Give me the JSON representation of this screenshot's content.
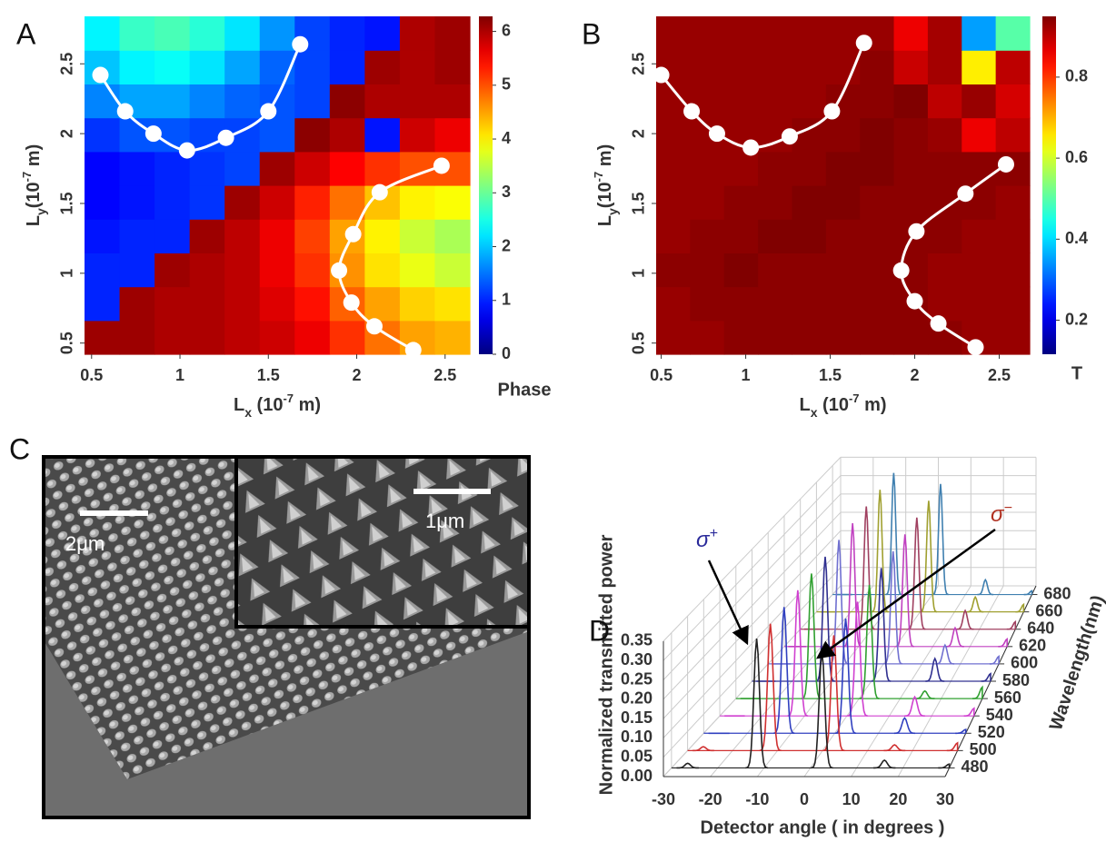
{
  "panel_labels": [
    "A",
    "B",
    "C",
    "D"
  ],
  "panel_c": {
    "scale_labels": [
      "2μm",
      "1μm"
    ]
  },
  "chart_data": [
    {
      "type": "heatmap",
      "xlabel": [
        "L",
        "x",
        " (10",
        "-7",
        " m)"
      ],
      "ylabel": [
        "L",
        "y",
        "(10",
        "-7",
        " m)"
      ],
      "xlim": [
        0.46,
        2.64
      ],
      "ylim": [
        0.42,
        2.84
      ],
      "xticks": [
        0.5,
        1,
        1.5,
        2,
        2.5
      ],
      "yticks": [
        0.5,
        1,
        1.5,
        2,
        2.5
      ],
      "colorbar_label": "Phase",
      "clim": [
        0,
        6.28
      ],
      "cticks": [
        0,
        1,
        2,
        3,
        4,
        5,
        6
      ],
      "z": [
        [
          6.1,
          6.1,
          6.0,
          6.0,
          5.9,
          5.8,
          5.6,
          5.2,
          4.8,
          4.5,
          4.4
        ],
        [
          1.0,
          6.1,
          6.0,
          6.0,
          5.9,
          5.7,
          5.4,
          4.9,
          4.5,
          4.2,
          4.1
        ],
        [
          1.0,
          1.0,
          6.1,
          6.0,
          5.9,
          5.6,
          5.2,
          4.6,
          4.1,
          3.8,
          3.6
        ],
        [
          0.9,
          1.0,
          1.0,
          6.1,
          5.9,
          5.6,
          5.1,
          4.5,
          4.0,
          3.6,
          3.4
        ],
        [
          0.8,
          0.9,
          1.0,
          1.1,
          6.1,
          5.8,
          5.3,
          4.8,
          4.3,
          4.0,
          3.9
        ],
        [
          0.8,
          0.9,
          1.0,
          1.1,
          1.2,
          6.1,
          5.8,
          5.5,
          5.2,
          5.0,
          5.0
        ],
        [
          1.1,
          1.3,
          1.3,
          1.2,
          1.2,
          1.3,
          6.2,
          6.0,
          0.9,
          5.8,
          5.6
        ],
        [
          1.6,
          1.8,
          1.8,
          1.6,
          1.4,
          1.3,
          1.2,
          6.2,
          6.0,
          6.0,
          6.0
        ],
        [
          2.0,
          2.3,
          2.4,
          2.2,
          1.8,
          1.4,
          1.2,
          1.0,
          6.1,
          6.0,
          6.1
        ],
        [
          2.3,
          2.7,
          2.8,
          2.6,
          2.2,
          1.7,
          1.2,
          1.0,
          0.9,
          6.0,
          6.1
        ]
      ],
      "series": [
        {
          "color": "#ffffff",
          "x": [
            0.55,
            0.69,
            0.85,
            1.04,
            1.26,
            1.5,
            1.68
          ],
          "values": [
            2.42,
            2.16,
            2.0,
            1.88,
            1.97,
            2.16,
            2.64
          ]
        },
        {
          "color": "#ffffff",
          "x": [
            2.48,
            2.13,
            1.98,
            1.9,
            1.97,
            2.1,
            2.32
          ],
          "values": [
            1.77,
            1.58,
            1.28,
            1.02,
            0.79,
            0.62,
            0.45
          ]
        }
      ]
    },
    {
      "type": "heatmap",
      "xlabel": [
        "L",
        "x",
        " (10",
        "-7",
        " m)"
      ],
      "ylabel": [
        "L",
        "y",
        "(10",
        "-7",
        " m)"
      ],
      "xlim": [
        0.47,
        2.68
      ],
      "ylim": [
        0.42,
        2.84
      ],
      "xticks": [
        0.5,
        1,
        1.5,
        2,
        2.5
      ],
      "yticks": [
        0.5,
        1,
        1.5,
        2,
        2.5
      ],
      "colorbar_label": "T",
      "clim": [
        0.116,
        0.95
      ],
      "cticks": [
        0.2,
        0.4,
        0.6,
        0.8
      ],
      "z": [
        [
          0.93,
          0.93,
          0.94,
          0.94,
          0.94,
          0.94,
          0.94,
          0.94,
          0.94,
          0.93,
          0.93
        ],
        [
          0.93,
          0.94,
          0.94,
          0.94,
          0.94,
          0.94,
          0.94,
          0.94,
          0.93,
          0.93,
          0.93
        ],
        [
          0.94,
          0.94,
          0.95,
          0.94,
          0.94,
          0.94,
          0.94,
          0.94,
          0.93,
          0.93,
          0.93
        ],
        [
          0.93,
          0.94,
          0.94,
          0.95,
          0.95,
          0.94,
          0.94,
          0.94,
          0.94,
          0.93,
          0.93
        ],
        [
          0.93,
          0.93,
          0.94,
          0.94,
          0.95,
          0.95,
          0.94,
          0.94,
          0.94,
          0.94,
          0.93
        ],
        [
          0.93,
          0.93,
          0.93,
          0.94,
          0.94,
          0.95,
          0.95,
          0.94,
          0.94,
          0.94,
          0.94
        ],
        [
          0.93,
          0.93,
          0.93,
          0.93,
          0.94,
          0.94,
          0.95,
          0.94,
          0.93,
          0.86,
          0.9
        ],
        [
          0.93,
          0.93,
          0.93,
          0.93,
          0.93,
          0.94,
          0.94,
          0.95,
          0.9,
          0.93,
          0.88
        ],
        [
          0.93,
          0.93,
          0.93,
          0.93,
          0.93,
          0.93,
          0.94,
          0.89,
          0.92,
          0.65,
          0.9
        ],
        [
          0.93,
          0.93,
          0.93,
          0.93,
          0.93,
          0.93,
          0.93,
          0.86,
          0.92,
          0.35,
          0.5
        ]
      ],
      "series": [
        {
          "color": "#ffffff",
          "x": [
            0.5,
            0.68,
            0.83,
            1.03,
            1.26,
            1.51,
            1.7
          ],
          "values": [
            2.42,
            2.16,
            2.0,
            1.9,
            1.98,
            2.16,
            2.65
          ]
        },
        {
          "color": "#ffffff",
          "x": [
            2.54,
            2.3,
            2.01,
            1.92,
            2.0,
            2.14,
            2.36
          ],
          "values": [
            1.78,
            1.57,
            1.3,
            1.02,
            0.8,
            0.64,
            0.47
          ]
        }
      ]
    },
    {
      "type": "waterfall3d",
      "xlabel": "Detector angle ( in degrees )",
      "ylabel": "Normalized transmitted power",
      "zlabel": "Wavelength(nm)",
      "xlim": [
        -30,
        30
      ],
      "xticks": [
        -30,
        -20,
        -10,
        0,
        10,
        20,
        30
      ],
      "ylim": [
        0,
        0.35
      ],
      "yticks": [
        {
          "value": 0,
          "label": "0.00"
        },
        {
          "value": 0.05,
          "label": "0.05"
        },
        {
          "value": 0.1,
          "label": "0.10"
        },
        {
          "value": 0.15,
          "label": "0.15"
        },
        {
          "value": 0.2,
          "label": "0.20"
        },
        {
          "value": 0.25,
          "label": "0.25"
        },
        {
          "value": 0.3,
          "label": "0.30"
        },
        {
          "value": 0.35,
          "label": "0.35"
        }
      ],
      "z": [
        480,
        500,
        520,
        540,
        560,
        580,
        600,
        620,
        640,
        660,
        680
      ],
      "peak_x": [
        -26.5,
        -11.6,
        2.5,
        16,
        30
      ],
      "annotations": [
        {
          "text": "σ",
          "sup": "+",
          "color": "#2a2a9a"
        },
        {
          "text": "σ",
          "sup": "−",
          "color": "#b03020"
        }
      ],
      "series": [
        {
          "color": "#222222",
          "values": [
            0.012,
            0.335,
            0.3,
            0.02,
            0.01
          ]
        },
        {
          "color": "#d03030",
          "values": [
            0.01,
            0.33,
            0.3,
            0.015,
            0.02
          ]
        },
        {
          "color": "#3040c0",
          "values": [
            0.0,
            0.33,
            0.3,
            0.04,
            0.01
          ]
        },
        {
          "color": "#d040d0",
          "values": [
            0.0,
            0.33,
            0.3,
            0.05,
            0.02
          ]
        },
        {
          "color": "#30a030",
          "values": [
            0.0,
            0.33,
            0.3,
            0.02,
            0.03
          ]
        },
        {
          "color": "#303090",
          "values": [
            0.0,
            0.33,
            0.3,
            0.06,
            0.02
          ]
        },
        {
          "color": "#7070d0",
          "values": [
            0.0,
            0.33,
            0.3,
            0.05,
            0.02
          ]
        },
        {
          "color": "#c040c0",
          "values": [
            0.0,
            0.33,
            0.3,
            0.05,
            0.02
          ]
        },
        {
          "color": "#a04060",
          "values": [
            0.0,
            0.33,
            0.3,
            0.05,
            0.02
          ]
        },
        {
          "color": "#a0a030",
          "values": [
            0.0,
            0.33,
            0.3,
            0.04,
            0.02
          ]
        },
        {
          "color": "#4080b0",
          "values": [
            0.0,
            0.33,
            0.3,
            0.04,
            0.01
          ]
        }
      ]
    }
  ]
}
